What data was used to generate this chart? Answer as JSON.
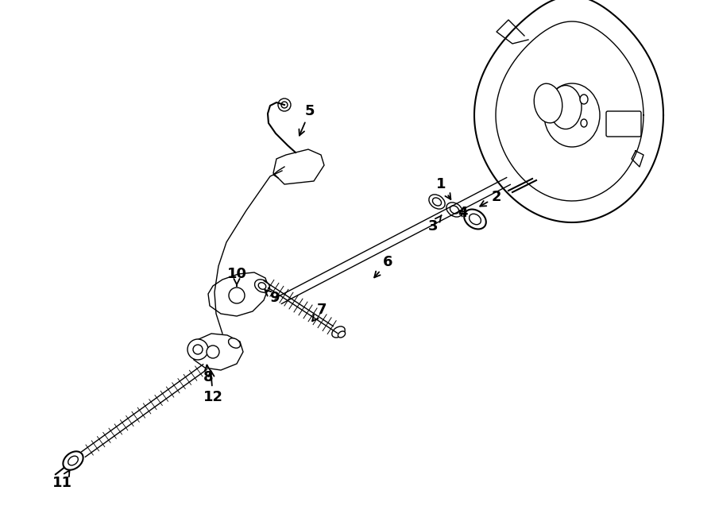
{
  "background_color": "#ffffff",
  "line_color": "#000000",
  "figsize": [
    9.0,
    6.61
  ],
  "dpi": 100
}
